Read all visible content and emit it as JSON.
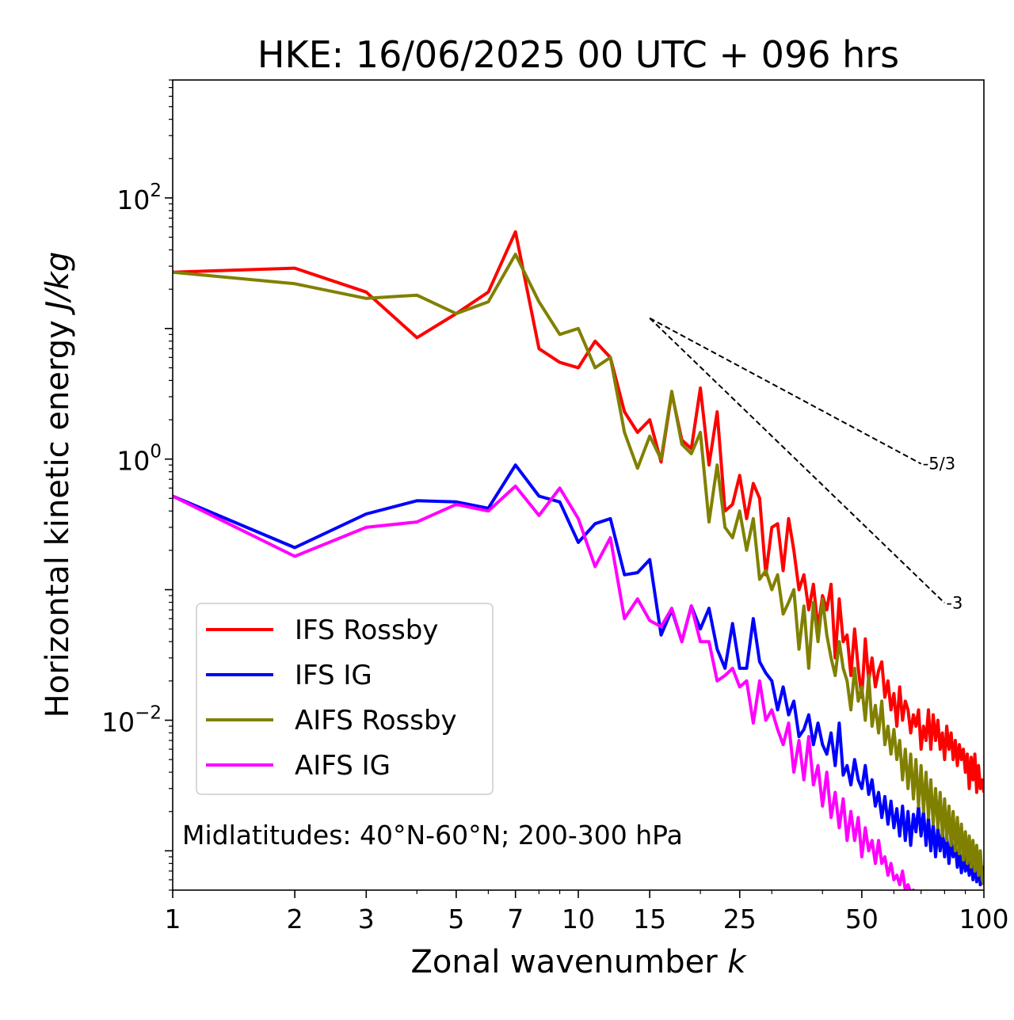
{
  "chart_data": {
    "type": "line",
    "title": "HKE: 16/06/2025 00 UTC + 096 hrs",
    "xlabel_main": "Zonal wavenumber ",
    "xlabel_italic": "k",
    "ylabel_main": "Horizontal kinetic energy ",
    "ylabel_italic": "J/kg",
    "x_scale": "log",
    "y_scale": "log",
    "xlim": [
      1,
      100
    ],
    "ylim": [
      0.0005,
      800
    ],
    "x_ticks": [
      1,
      2,
      3,
      5,
      7,
      10,
      15,
      25,
      50,
      100
    ],
    "x_tick_labels": [
      "1",
      "2",
      "3",
      "5",
      "7",
      "10",
      "15",
      "25",
      "50",
      "100"
    ],
    "y_ticks": [
      100,
      1,
      0.01
    ],
    "y_tick_labels": [
      {
        "base": "10",
        "exp": "2"
      },
      {
        "base": "10",
        "exp": "0"
      },
      {
        "base": "10",
        "exp": "−2"
      }
    ],
    "grid": false,
    "legend_position": "lower-left",
    "annotation": "Midlatitudes: 40°N-60°N; 200-300 hPa",
    "reference_slopes": [
      {
        "label": "-5/3",
        "x": [
          15,
          70
        ],
        "y": [
          12.0,
          0.92
        ]
      },
      {
        "label": "-3",
        "x": [
          15,
          80
        ],
        "y": [
          12.0,
          0.079
        ]
      }
    ],
    "series": [
      {
        "name": "IFS Rossby",
        "color": "#ff0000",
        "x": [
          1,
          2,
          3,
          4,
          5,
          6,
          7,
          8,
          9,
          10,
          11,
          12,
          13,
          14,
          15,
          16,
          17,
          18,
          19,
          20,
          21,
          22,
          23,
          24,
          25,
          26,
          27,
          28,
          29,
          30,
          31,
          32,
          33,
          34,
          35,
          36,
          37,
          38,
          39,
          40,
          41,
          42,
          43,
          44,
          45,
          46,
          47,
          48,
          49,
          50,
          51,
          52,
          53,
          54,
          55,
          56,
          57,
          58,
          59,
          60,
          61,
          62,
          63,
          64,
          65,
          66,
          67,
          68,
          69,
          70,
          71,
          72,
          73,
          74,
          75,
          76,
          77,
          78,
          79,
          80,
          81,
          82,
          83,
          84,
          85,
          86,
          87,
          88,
          89,
          90,
          91,
          92,
          93,
          94,
          95,
          96,
          97,
          98,
          99,
          100
        ],
        "y": [
          27,
          29,
          19,
          8.5,
          13,
          19,
          55,
          7,
          5.5,
          5,
          8,
          6,
          2.3,
          1.6,
          2.0,
          0.95,
          3.2,
          1.4,
          1.2,
          3.5,
          0.9,
          2.3,
          0.4,
          0.45,
          0.75,
          0.35,
          0.65,
          0.5,
          0.13,
          0.3,
          0.32,
          0.14,
          0.35,
          0.2,
          0.1,
          0.13,
          0.07,
          0.11,
          0.05,
          0.09,
          0.07,
          0.11,
          0.03,
          0.085,
          0.04,
          0.045,
          0.022,
          0.05,
          0.025,
          0.015,
          0.042,
          0.02,
          0.03,
          0.018,
          0.024,
          0.028,
          0.015,
          0.02,
          0.012,
          0.016,
          0.009,
          0.018,
          0.01,
          0.014,
          0.012,
          0.008,
          0.011,
          0.009,
          0.012,
          0.006,
          0.009,
          0.007,
          0.012,
          0.006,
          0.011,
          0.007,
          0.01,
          0.006,
          0.008,
          0.005,
          0.009,
          0.006,
          0.008,
          0.005,
          0.007,
          0.0045,
          0.0065,
          0.005,
          0.006,
          0.004,
          0.0055,
          0.003,
          0.0052,
          0.0035,
          0.0055,
          0.0028,
          0.0045,
          0.003,
          0.0035,
          0.0028
        ]
      },
      {
        "name": "IFS IG",
        "color": "#0000ff",
        "x": [
          1,
          2,
          3,
          4,
          5,
          6,
          7,
          8,
          9,
          10,
          11,
          12,
          13,
          14,
          15,
          16,
          17,
          18,
          19,
          20,
          21,
          22,
          23,
          24,
          25,
          26,
          27,
          28,
          29,
          30,
          31,
          32,
          33,
          34,
          35,
          36,
          37,
          38,
          39,
          40,
          41,
          42,
          43,
          44,
          45,
          46,
          47,
          48,
          49,
          50,
          51,
          52,
          53,
          54,
          55,
          56,
          57,
          58,
          59,
          60,
          61,
          62,
          63,
          64,
          65,
          66,
          67,
          68,
          69,
          70,
          71,
          72,
          73,
          74,
          75,
          76,
          77,
          78,
          79,
          80,
          81,
          82,
          83,
          84,
          85,
          86,
          87,
          88,
          89,
          90,
          91,
          92,
          93,
          94,
          95,
          96,
          97,
          98,
          99,
          100
        ],
        "y": [
          0.52,
          0.21,
          0.38,
          0.48,
          0.47,
          0.42,
          0.9,
          0.52,
          0.47,
          0.23,
          0.32,
          0.35,
          0.13,
          0.135,
          0.17,
          0.045,
          0.07,
          0.04,
          0.075,
          0.05,
          0.072,
          0.035,
          0.025,
          0.055,
          0.025,
          0.025,
          0.06,
          0.028,
          0.023,
          0.02,
          0.012,
          0.018,
          0.011,
          0.014,
          0.0075,
          0.0085,
          0.011,
          0.0065,
          0.0095,
          0.0065,
          0.0055,
          0.008,
          0.0045,
          0.0095,
          0.0038,
          0.0045,
          0.0032,
          0.005,
          0.0035,
          0.003,
          0.0045,
          0.0027,
          0.0035,
          0.0022,
          0.0028,
          0.0018,
          0.0026,
          0.0016,
          0.0024,
          0.0015,
          0.0021,
          0.0013,
          0.0022,
          0.0012,
          0.002,
          0.0011,
          0.0019,
          0.0014,
          0.0022,
          0.0013,
          0.002,
          0.0011,
          0.0018,
          0.001,
          0.0016,
          0.0009,
          0.0015,
          0.001,
          0.0014,
          0.0009,
          0.0013,
          0.0008,
          0.0012,
          0.0009,
          0.0011,
          0.00075,
          0.001,
          0.00068,
          0.00095,
          0.0007,
          0.00085,
          0.00065,
          0.0009,
          0.0006,
          0.00085,
          0.00058,
          0.0008,
          0.00055,
          0.00075,
          0.0006
        ]
      },
      {
        "name": "AIFS Rossby",
        "color": "#808000",
        "x": [
          1,
          2,
          3,
          4,
          5,
          6,
          7,
          8,
          9,
          10,
          11,
          12,
          13,
          14,
          15,
          16,
          17,
          18,
          19,
          20,
          21,
          22,
          23,
          24,
          25,
          26,
          27,
          28,
          29,
          30,
          31,
          32,
          33,
          34,
          35,
          36,
          37,
          38,
          39,
          40,
          41,
          42,
          43,
          44,
          45,
          46,
          47,
          48,
          49,
          50,
          51,
          52,
          53,
          54,
          55,
          56,
          57,
          58,
          59,
          60,
          61,
          62,
          63,
          64,
          65,
          66,
          67,
          68,
          69,
          70,
          71,
          72,
          73,
          74,
          75,
          76,
          77,
          78,
          79,
          80,
          81,
          82,
          83,
          84,
          85,
          86,
          87,
          88,
          89,
          90,
          91,
          92,
          93,
          94,
          95,
          96,
          97,
          98,
          99,
          100
        ],
        "y": [
          27,
          22,
          17,
          18,
          13,
          16,
          37,
          16,
          9,
          10,
          5,
          6,
          1.6,
          0.85,
          1.5,
          1.0,
          3.3,
          1.3,
          1.1,
          1.6,
          0.33,
          0.9,
          0.3,
          0.25,
          0.4,
          0.2,
          0.35,
          0.12,
          0.14,
          0.1,
          0.13,
          0.065,
          0.08,
          0.1,
          0.035,
          0.075,
          0.025,
          0.08,
          0.04,
          0.085,
          0.045,
          0.03,
          0.022,
          0.04,
          0.025,
          0.02,
          0.012,
          0.025,
          0.014,
          0.018,
          0.01,
          0.022,
          0.009,
          0.013,
          0.008,
          0.014,
          0.0065,
          0.009,
          0.0055,
          0.0085,
          0.005,
          0.007,
          0.0035,
          0.006,
          0.003,
          0.0055,
          0.0025,
          0.005,
          0.0022,
          0.0045,
          0.002,
          0.004,
          0.0018,
          0.0035,
          0.0016,
          0.003,
          0.0015,
          0.0028,
          0.0013,
          0.0025,
          0.0012,
          0.0022,
          0.0011,
          0.002,
          0.001,
          0.0018,
          0.00095,
          0.0016,
          0.00085,
          0.0014,
          0.0008,
          0.0013,
          0.00075,
          0.0012,
          0.0007,
          0.0011,
          0.00065,
          0.001,
          0.0006,
          0.00055
        ]
      },
      {
        "name": "AIFS IG",
        "color": "#ff00ff",
        "x": [
          1,
          2,
          3,
          4,
          5,
          6,
          7,
          8,
          9,
          10,
          11,
          12,
          13,
          14,
          15,
          16,
          17,
          18,
          19,
          20,
          21,
          22,
          23,
          24,
          25,
          26,
          27,
          28,
          29,
          30,
          31,
          32,
          33,
          34,
          35,
          36,
          37,
          38,
          39,
          40,
          41,
          42,
          43,
          44,
          45,
          46,
          47,
          48,
          49,
          50,
          51,
          52,
          53,
          54,
          55,
          56,
          57,
          58,
          59,
          60,
          61,
          62,
          63,
          64,
          65,
          66,
          67,
          68,
          69
        ],
        "y": [
          0.52,
          0.18,
          0.3,
          0.33,
          0.45,
          0.4,
          0.62,
          0.37,
          0.6,
          0.35,
          0.15,
          0.25,
          0.06,
          0.085,
          0.058,
          0.052,
          0.072,
          0.04,
          0.075,
          0.04,
          0.04,
          0.02,
          0.022,
          0.025,
          0.018,
          0.02,
          0.0095,
          0.02,
          0.01,
          0.012,
          0.0085,
          0.0065,
          0.0095,
          0.004,
          0.007,
          0.0035,
          0.0075,
          0.0032,
          0.0045,
          0.0022,
          0.004,
          0.0018,
          0.0028,
          0.0015,
          0.0025,
          0.0012,
          0.002,
          0.0012,
          0.0018,
          0.0009,
          0.0015,
          0.001,
          0.0012,
          0.0008,
          0.0012,
          0.0008,
          0.0009,
          0.00065,
          0.0008,
          0.0006,
          0.00065,
          0.00055,
          0.0007,
          0.0005,
          0.00055,
          0.00048,
          0.0005,
          0.00045,
          0.0004
        ]
      }
    ]
  }
}
